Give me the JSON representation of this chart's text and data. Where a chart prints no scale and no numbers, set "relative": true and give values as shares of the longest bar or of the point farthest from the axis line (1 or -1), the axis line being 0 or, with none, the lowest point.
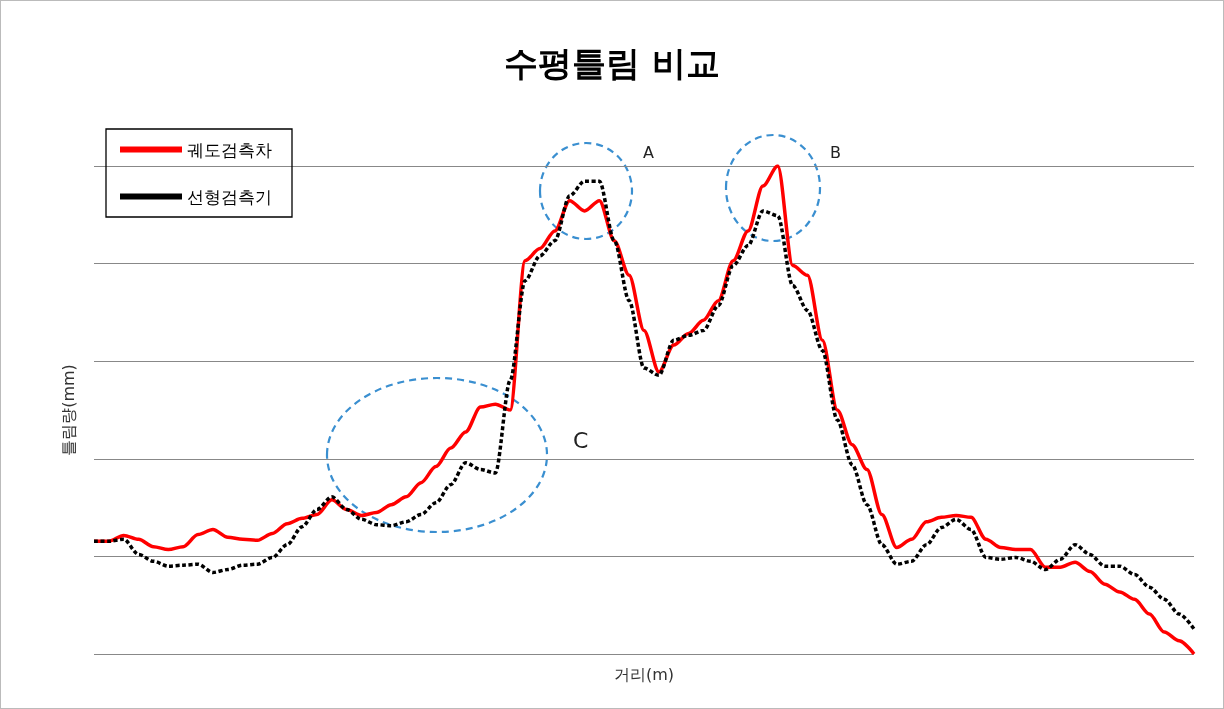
{
  "chart_data": {
    "type": "line",
    "title": "수평틀림 비교",
    "xlabel": "거리(m)",
    "ylabel": "틀림량(mm)",
    "relative": true,
    "grid": "y",
    "legend": "top left",
    "marker": "none",
    "categories": [
      null,
      null,
      null,
      null,
      null,
      null,
      null,
      null,
      null,
      null,
      null,
      null,
      null,
      null,
      null,
      null,
      null,
      null,
      null,
      null,
      null,
      null,
      null,
      null,
      null,
      null,
      null,
      null,
      null,
      null,
      null,
      null,
      null,
      null,
      null,
      null,
      null,
      null,
      null,
      null,
      null,
      null,
      null,
      null,
      null,
      null,
      null,
      null,
      null,
      null,
      null,
      null,
      null,
      null,
      null,
      null,
      null,
      null,
      null,
      null,
      null,
      null,
      null,
      null,
      null,
      null,
      null,
      null,
      null,
      null,
      null,
      null,
      null,
      null,
      null
    ],
    "series": [
      {
        "name": "궤도검측차",
        "color": "#ff0000",
        "line_style": "solid",
        "values": [
          0.231,
          0.231,
          0.243,
          0.235,
          0.22,
          0.214,
          0.22,
          0.245,
          0.255,
          0.239,
          0.235,
          0.233,
          0.247,
          0.267,
          0.278,
          0.286,
          0.316,
          0.296,
          0.284,
          0.29,
          0.306,
          0.322,
          0.351,
          0.384,
          0.422,
          0.455,
          0.506,
          0.512,
          0.5,
          0.806,
          0.831,
          0.867,
          0.929,
          0.908,
          0.929,
          0.847,
          0.776,
          0.663,
          0.578,
          0.633,
          0.657,
          0.684,
          0.724,
          0.806,
          0.867,
          0.959,
          1,
          0.796,
          0.776,
          0.643,
          0.5,
          0.429,
          0.378,
          0.286,
          0.218,
          0.235,
          0.271,
          0.28,
          0.284,
          0.28,
          0.235,
          0.218,
          0.214,
          0.214,
          0.178,
          0.178,
          0.188,
          0.169,
          0.143,
          0.127,
          0.112,
          0.082,
          0.045,
          0.027,
          0
        ]
      },
      {
        "name": "선형검측기",
        "color": "#000000",
        "line_style": "dashed",
        "values": [
          0.231,
          0.231,
          0.235,
          0.204,
          0.19,
          0.18,
          0.182,
          0.184,
          0.167,
          0.173,
          0.182,
          0.184,
          0.198,
          0.224,
          0.261,
          0.296,
          0.322,
          0.296,
          0.276,
          0.265,
          0.263,
          0.271,
          0.286,
          0.31,
          0.347,
          0.392,
          0.378,
          0.371,
          0.561,
          0.765,
          0.816,
          0.847,
          0.939,
          0.969,
          0.969,
          0.847,
          0.724,
          0.586,
          0.571,
          0.643,
          0.653,
          0.663,
          0.714,
          0.796,
          0.837,
          0.908,
          0.898,
          0.755,
          0.704,
          0.622,
          0.48,
          0.388,
          0.306,
          0.224,
          0.184,
          0.19,
          0.224,
          0.259,
          0.276,
          0.255,
          0.198,
          0.194,
          0.198,
          0.19,
          0.173,
          0.194,
          0.224,
          0.204,
          0.18,
          0.18,
          0.163,
          0.137,
          0.112,
          0.082,
          0.051
        ]
      }
    ],
    "annotations": [
      "A",
      "B",
      "C"
    ]
  }
}
